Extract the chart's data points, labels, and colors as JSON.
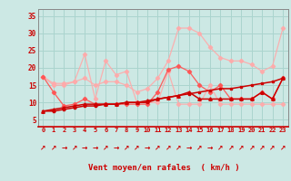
{
  "x": [
    0,
    1,
    2,
    3,
    4,
    5,
    6,
    7,
    8,
    9,
    10,
    11,
    12,
    13,
    14,
    15,
    16,
    17,
    18,
    19,
    20,
    21,
    22,
    23
  ],
  "line1": [
    17.5,
    13,
    9,
    9.5,
    11,
    9.5,
    9.5,
    9.5,
    9.5,
    9.5,
    9.5,
    13,
    19.5,
    20.5,
    19,
    15,
    13,
    15,
    11,
    11,
    11,
    13,
    11,
    17
  ],
  "line2": [
    17.5,
    15.5,
    15.5,
    16,
    24,
    11,
    22,
    18,
    19,
    10,
    10,
    10,
    19,
    9.5,
    9.5,
    9.5,
    15,
    9.5,
    9.5,
    9.5,
    9.5,
    9.5,
    9.5,
    9.5
  ],
  "line3": [
    17.5,
    15,
    15,
    16,
    17,
    15,
    16,
    16,
    15,
    13,
    14,
    17,
    22,
    31.5,
    31.5,
    30,
    26,
    23,
    22,
    22,
    21,
    19,
    20.5,
    31.5
  ],
  "line4": [
    7.5,
    7.5,
    8,
    8.5,
    9,
    9,
    9.5,
    9.5,
    10,
    10,
    10,
    11,
    11.5,
    12,
    12.5,
    13,
    13.5,
    14,
    14,
    14.5,
    15,
    15.5,
    16,
    17
  ],
  "line5": [
    7.5,
    8,
    8.5,
    9,
    9.5,
    9.5,
    9.5,
    9.5,
    10,
    10,
    10.5,
    11,
    11.5,
    12,
    13,
    11,
    11,
    11,
    11,
    11,
    11,
    13,
    11,
    17
  ],
  "bg_color": "#cce8e4",
  "grid_color": "#aad4ce",
  "line1_color": "#ff5555",
  "line2_color": "#ffaaaa",
  "line3_color": "#ffaaaa",
  "line4_color": "#cc0000",
  "line5_color": "#cc0000",
  "xlabel": "Vent moyen/en rafales  ( km/h )",
  "ylim": [
    3,
    37
  ],
  "yticks": [
    5,
    10,
    15,
    20,
    25,
    30,
    35
  ],
  "xlim": [
    -0.5,
    23.5
  ],
  "arrow_chars": [
    "↗",
    "↗",
    "→",
    "↗",
    "→",
    "→",
    "↗",
    "→",
    "↗",
    "↗",
    "→",
    "↗",
    "↗",
    "↗",
    "→",
    "↗",
    "→",
    "↗",
    "↗",
    "↗",
    "↗",
    "↗",
    "↗",
    "↗"
  ]
}
